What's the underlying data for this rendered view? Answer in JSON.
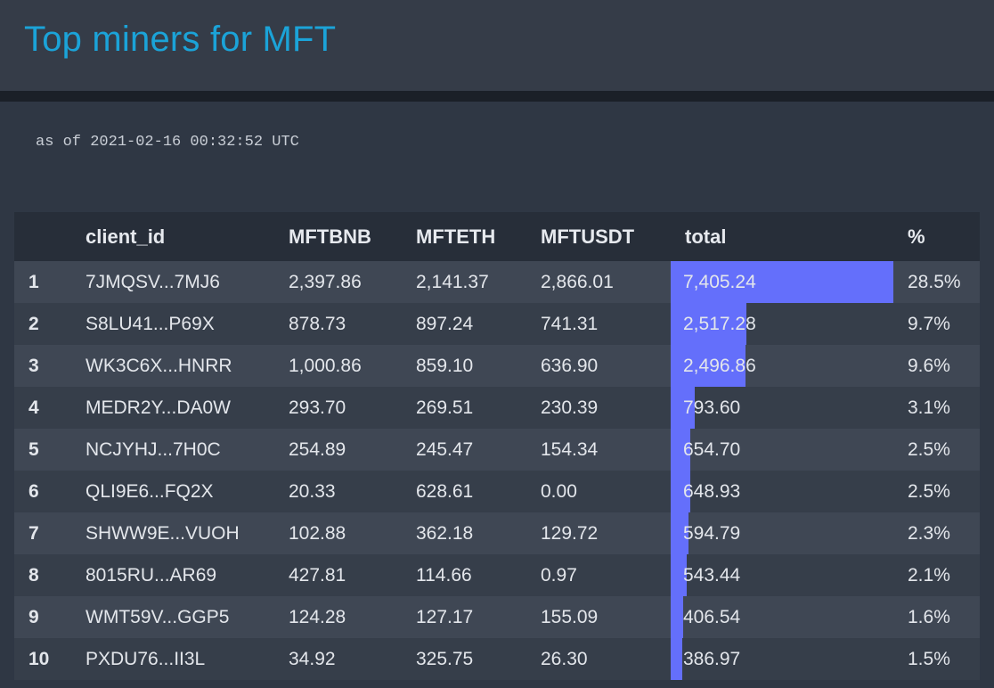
{
  "page": {
    "title": "Top miners for MFT",
    "timestamp": "as of 2021-02-16 00:32:52 UTC"
  },
  "colors": {
    "title": "#1ba3d8",
    "bar": "#646ffb",
    "background": "#2f3744"
  },
  "table": {
    "headers": {
      "rank": "",
      "client_id": "client_id",
      "mftbnb": "MFTBNB",
      "mfteth": "MFTETH",
      "mftusdt": "MFTUSDT",
      "total": "total",
      "percent": "%"
    },
    "rows": [
      {
        "rank": "1",
        "client_id": "7JMQSV...7MJ6",
        "mftbnb": "2,397.86",
        "mfteth": "2,141.37",
        "mftusdt": "2,866.01",
        "total": "7,405.24",
        "percent": "28.5%",
        "total_value": 7405.24
      },
      {
        "rank": "2",
        "client_id": "S8LU41...P69X",
        "mftbnb": "878.73",
        "mfteth": "897.24",
        "mftusdt": "741.31",
        "total": "2,517.28",
        "percent": "9.7%",
        "total_value": 2517.28
      },
      {
        "rank": "3",
        "client_id": "WK3C6X...HNRR",
        "mftbnb": "1,000.86",
        "mfteth": "859.10",
        "mftusdt": "636.90",
        "total": "2,496.86",
        "percent": "9.6%",
        "total_value": 2496.86
      },
      {
        "rank": "4",
        "client_id": "MEDR2Y...DA0W",
        "mftbnb": "293.70",
        "mfteth": "269.51",
        "mftusdt": "230.39",
        "total": "793.60",
        "percent": "3.1%",
        "total_value": 793.6
      },
      {
        "rank": "5",
        "client_id": "NCJYHJ...7H0C",
        "mftbnb": "254.89",
        "mfteth": "245.47",
        "mftusdt": "154.34",
        "total": "654.70",
        "percent": "2.5%",
        "total_value": 654.7
      },
      {
        "rank": "6",
        "client_id": "QLI9E6...FQ2X",
        "mftbnb": "20.33",
        "mfteth": "628.61",
        "mftusdt": "0.00",
        "total": "648.93",
        "percent": "2.5%",
        "total_value": 648.93
      },
      {
        "rank": "7",
        "client_id": "SHWW9E...VUOH",
        "mftbnb": "102.88",
        "mfteth": "362.18",
        "mftusdt": "129.72",
        "total": "594.79",
        "percent": "2.3%",
        "total_value": 594.79
      },
      {
        "rank": "8",
        "client_id": "8015RU...AR69",
        "mftbnb": "427.81",
        "mfteth": "114.66",
        "mftusdt": "0.97",
        "total": "543.44",
        "percent": "2.1%",
        "total_value": 543.44
      },
      {
        "rank": "9",
        "client_id": "WMT59V...GGP5",
        "mftbnb": "124.28",
        "mfteth": "127.17",
        "mftusdt": "155.09",
        "total": "406.54",
        "percent": "1.6%",
        "total_value": 406.54
      },
      {
        "rank": "10",
        "client_id": "PXDU76...II3L",
        "mftbnb": "34.92",
        "mfteth": "325.75",
        "mftusdt": "26.30",
        "total": "386.97",
        "percent": "1.5%",
        "total_value": 386.97
      }
    ]
  }
}
